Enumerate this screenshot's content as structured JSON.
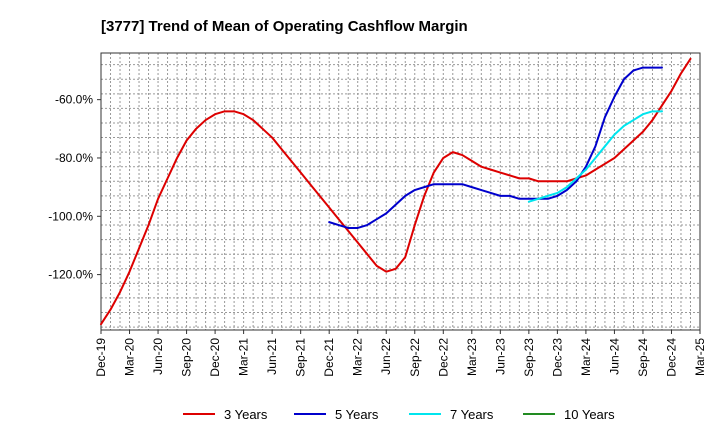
{
  "chart_data": {
    "type": "line",
    "title": "[3777]  Trend of Mean of Operating Cashflow Margin",
    "xlabel": "",
    "ylabel": "",
    "x_ticks": [
      "Dec-19",
      "Mar-20",
      "Jun-20",
      "Sep-20",
      "Dec-20",
      "Mar-21",
      "Jun-21",
      "Sep-21",
      "Dec-21",
      "Mar-22",
      "Jun-22",
      "Sep-22",
      "Dec-22",
      "Mar-23",
      "Jun-23",
      "Sep-23",
      "Dec-23",
      "Mar-24",
      "Jun-24",
      "Sep-24",
      "Dec-24",
      "Mar-25"
    ],
    "y_ticks": [
      -120,
      -100,
      -80,
      -60
    ],
    "y_tick_labels": [
      "-120.0%",
      "-100.0%",
      "-80.0%",
      "-60.0%"
    ],
    "ylim": [
      -139,
      -44
    ],
    "grid": true,
    "legend_position": "bottom",
    "series": [
      {
        "name": "3 Years",
        "color": "#dd0000",
        "points": [
          [
            0,
            -137
          ],
          [
            1,
            -132
          ],
          [
            2,
            -126
          ],
          [
            3,
            -119
          ],
          [
            4,
            -111
          ],
          [
            5,
            -103
          ],
          [
            6,
            -94
          ],
          [
            7,
            -87
          ],
          [
            8,
            -80
          ],
          [
            9,
            -74
          ],
          [
            10,
            -70
          ],
          [
            11,
            -67
          ],
          [
            12,
            -65
          ],
          [
            13,
            -64
          ],
          [
            14,
            -64
          ],
          [
            15,
            -65
          ],
          [
            16,
            -67
          ],
          [
            17,
            -70
          ],
          [
            18,
            -73
          ],
          [
            19,
            -77
          ],
          [
            20,
            -81
          ],
          [
            21,
            -85
          ],
          [
            22,
            -89
          ],
          [
            23,
            -93
          ],
          [
            24,
            -97
          ],
          [
            25,
            -101
          ],
          [
            26,
            -105
          ],
          [
            27,
            -109
          ],
          [
            28,
            -113
          ],
          [
            29,
            -117
          ],
          [
            30,
            -119
          ],
          [
            31,
            -118
          ],
          [
            32,
            -114
          ],
          [
            33,
            -103
          ],
          [
            34,
            -93
          ],
          [
            35,
            -85
          ],
          [
            36,
            -80
          ],
          [
            37,
            -78
          ],
          [
            38,
            -79
          ],
          [
            39,
            -81
          ],
          [
            40,
            -83
          ],
          [
            41,
            -84
          ],
          [
            42,
            -85
          ],
          [
            43,
            -86
          ],
          [
            44,
            -87
          ],
          [
            45,
            -87
          ],
          [
            46,
            -88
          ],
          [
            47,
            -88
          ],
          [
            48,
            -88
          ],
          [
            49,
            -88
          ],
          [
            50,
            -87
          ],
          [
            51,
            -86
          ],
          [
            52,
            -84
          ],
          [
            53,
            -82
          ],
          [
            54,
            -80
          ],
          [
            55,
            -77
          ],
          [
            56,
            -74
          ],
          [
            57,
            -71
          ],
          [
            58,
            -67
          ],
          [
            59,
            -62
          ],
          [
            60,
            -57
          ],
          [
            61,
            -51
          ],
          [
            62,
            -46
          ]
        ]
      },
      {
        "name": "5 Years",
        "color": "#0000cc",
        "points": [
          [
            24,
            -102
          ],
          [
            25,
            -103
          ],
          [
            26,
            -104
          ],
          [
            27,
            -104
          ],
          [
            28,
            -103
          ],
          [
            29,
            -101
          ],
          [
            30,
            -99
          ],
          [
            31,
            -96
          ],
          [
            32,
            -93
          ],
          [
            33,
            -91
          ],
          [
            34,
            -90
          ],
          [
            35,
            -89
          ],
          [
            36,
            -89
          ],
          [
            37,
            -89
          ],
          [
            38,
            -89
          ],
          [
            39,
            -90
          ],
          [
            40,
            -91
          ],
          [
            41,
            -92
          ],
          [
            42,
            -93
          ],
          [
            43,
            -93
          ],
          [
            44,
            -94
          ],
          [
            45,
            -94
          ],
          [
            46,
            -94
          ],
          [
            47,
            -94
          ],
          [
            48,
            -93
          ],
          [
            49,
            -91
          ],
          [
            50,
            -88
          ],
          [
            51,
            -83
          ],
          [
            52,
            -76
          ],
          [
            53,
            -66
          ],
          [
            54,
            -59
          ],
          [
            55,
            -53
          ],
          [
            56,
            -50
          ],
          [
            57,
            -49
          ],
          [
            58,
            -49
          ],
          [
            59,
            -49
          ]
        ]
      },
      {
        "name": "7 Years",
        "color": "#00e5ee",
        "points": [
          [
            45,
            -95
          ],
          [
            46,
            -94
          ],
          [
            47,
            -93
          ],
          [
            48,
            -92
          ],
          [
            49,
            -90
          ],
          [
            50,
            -87
          ],
          [
            51,
            -84
          ],
          [
            52,
            -80
          ],
          [
            53,
            -76
          ],
          [
            54,
            -72
          ],
          [
            55,
            -69
          ],
          [
            56,
            -67
          ],
          [
            57,
            -65
          ],
          [
            58,
            -64
          ],
          [
            59,
            -64
          ]
        ]
      },
      {
        "name": "10 Years",
        "color": "#228b22",
        "points": []
      }
    ]
  }
}
